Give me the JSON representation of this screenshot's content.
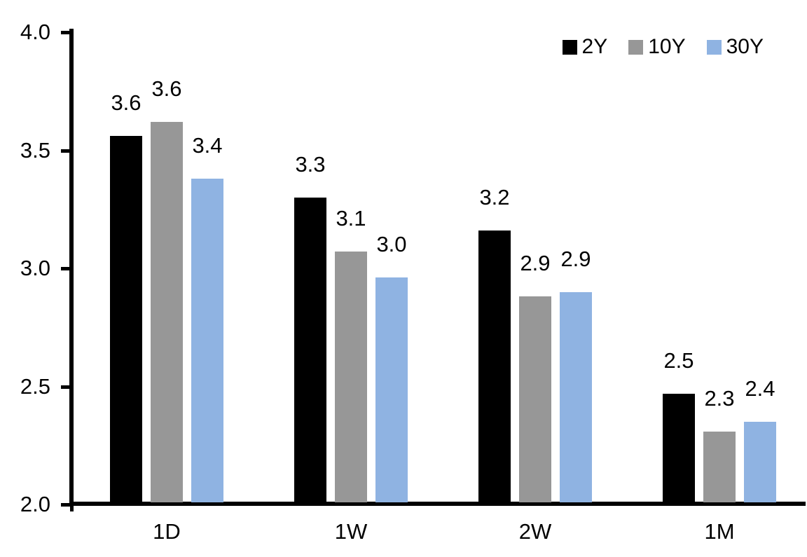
{
  "chart_data": {
    "type": "bar",
    "title": "",
    "xlabel": "",
    "ylabel": "",
    "categories": [
      "1D",
      "1W",
      "2W",
      "1M"
    ],
    "series": [
      {
        "name": "2Y",
        "color": "#000000",
        "values": [
          3.56,
          3.3,
          3.16,
          2.47
        ],
        "labels": [
          "3.6",
          "3.3",
          "3.2",
          "2.5"
        ]
      },
      {
        "name": "10Y",
        "color": "#979797",
        "values": [
          3.62,
          3.07,
          2.88,
          2.31
        ],
        "labels": [
          "3.6",
          "3.1",
          "2.9",
          "2.3"
        ]
      },
      {
        "name": "30Y",
        "color": "#8fb3e2",
        "values": [
          3.38,
          2.96,
          2.9,
          2.35
        ],
        "labels": [
          "3.4",
          "3.0",
          "2.9",
          "2.4"
        ]
      }
    ],
    "ylim": [
      2.0,
      4.0
    ],
    "ytick_labels": [
      "2.0",
      "2.5",
      "3.0",
      "3.5",
      "4.0"
    ],
    "grid": false,
    "legend_position": "top-right",
    "axis_color": "#000000",
    "text_color": "#000000",
    "background_color": "#ffffff"
  }
}
